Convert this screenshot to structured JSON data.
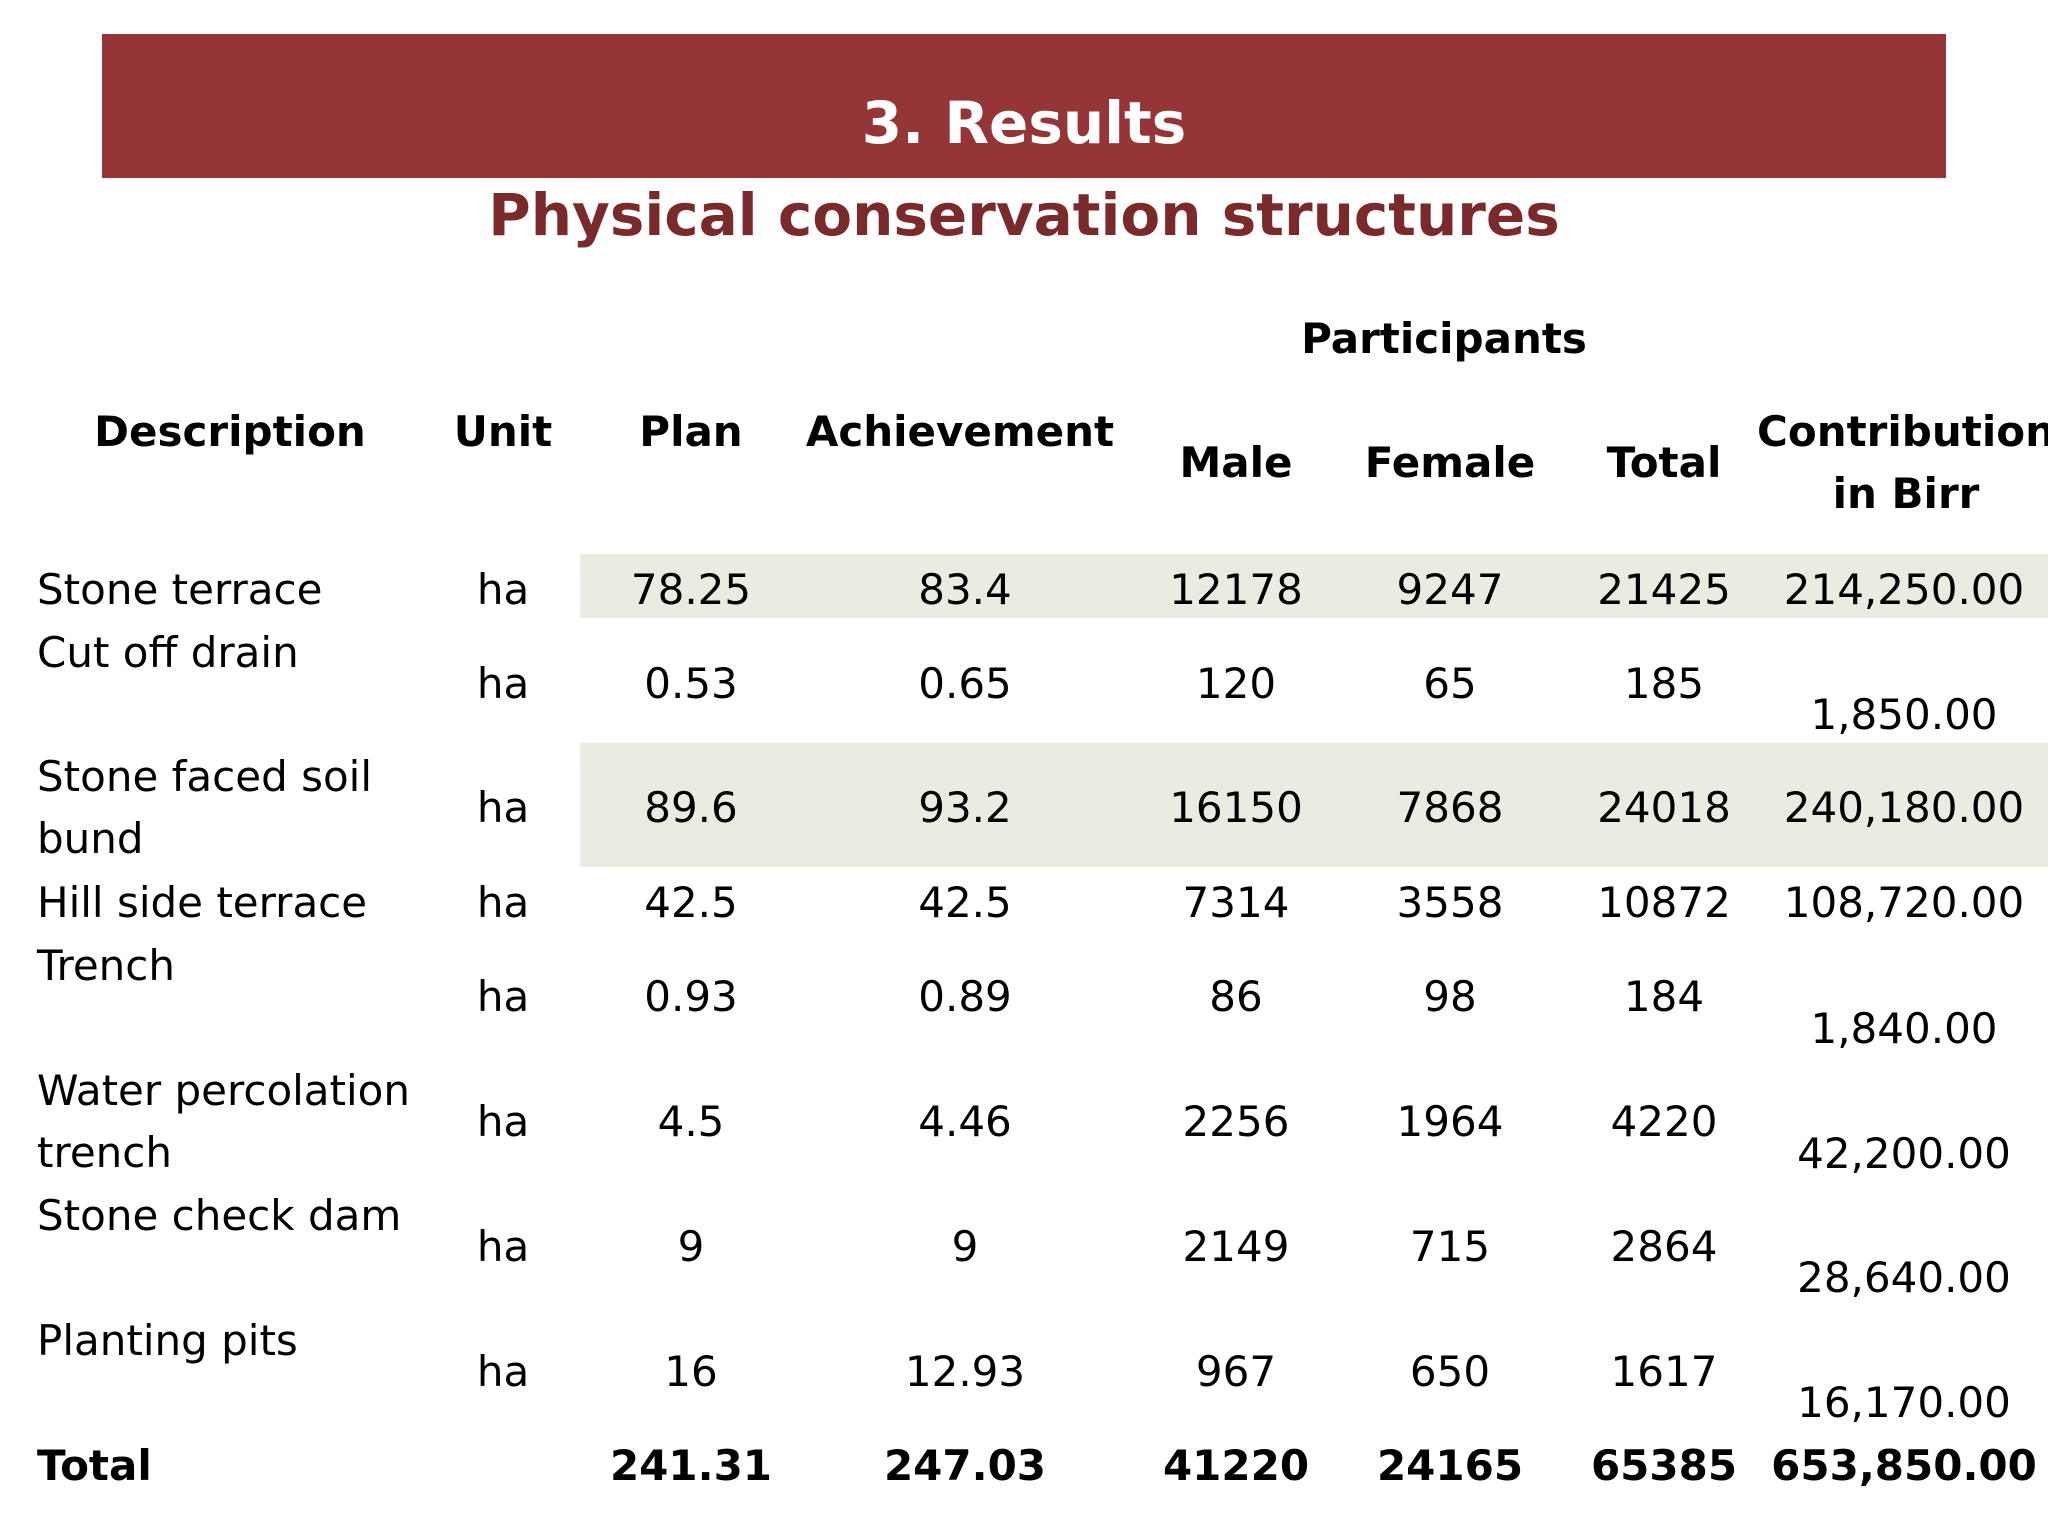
{
  "slide": {
    "title": "3. Results",
    "subtitle": "Physical conservation structures"
  },
  "table": {
    "headers": {
      "description": "Description",
      "unit": "Unit",
      "plan": "Plan",
      "achievement": "Achievement",
      "participants": "Participants",
      "male": "Male",
      "female": "Female",
      "total": "Total",
      "contribution_line1": "Contribution",
      "contribution_line2": "in Birr"
    },
    "rows": [
      {
        "description": [
          "Stone terrace"
        ],
        "unit": "ha",
        "plan": "78.25",
        "achievement": "83.4",
        "male": "12178",
        "female": "9247",
        "total": "21425",
        "contribution": "214,250.00"
      },
      {
        "description": [
          "Cut off drain"
        ],
        "unit": "ha",
        "plan": "0.53",
        "achievement": "0.65",
        "male": "120",
        "female": "65",
        "total": "185",
        "contribution": "1,850.00"
      },
      {
        "description": [
          "Stone faced soil",
          "bund"
        ],
        "unit": "ha",
        "plan": "89.6",
        "achievement": "93.2",
        "male": "16150",
        "female": "7868",
        "total": "24018",
        "contribution": "240,180.00"
      },
      {
        "description": [
          "Hill side terrace"
        ],
        "unit": "ha",
        "plan": "42.5",
        "achievement": "42.5",
        "male": "7314",
        "female": "3558",
        "total": "10872",
        "contribution": "108,720.00"
      },
      {
        "description": [
          "Trench"
        ],
        "unit": "ha",
        "plan": "0.93",
        "achievement": "0.89",
        "male": "86",
        "female": "98",
        "total": "184",
        "contribution": "1,840.00"
      },
      {
        "description": [
          "Water percolation",
          "trench"
        ],
        "unit": "ha",
        "plan": "4.5",
        "achievement": "4.46",
        "male": "2256",
        "female": "1964",
        "total": "4220",
        "contribution": "42,200.00"
      },
      {
        "description": [
          "Stone check dam"
        ],
        "unit": "ha",
        "plan": "9",
        "achievement": "9",
        "male": "2149",
        "female": "715",
        "total": "2864",
        "contribution": "28,640.00"
      },
      {
        "description": [
          "Planting pits"
        ],
        "unit": "ha",
        "plan": "16",
        "achievement": "12.93",
        "male": "967",
        "female": "650",
        "total": "1617",
        "contribution": "16,170.00"
      }
    ],
    "total_row": {
      "description": "Total",
      "unit": "",
      "plan": "241.31",
      "achievement": "247.03",
      "male": "41220",
      "female": "24165",
      "total": "65385",
      "contribution": "653,850.00"
    }
  },
  "colors": {
    "banner": "#963538",
    "subtitle": "#7b2a2c",
    "row_band": "#ecebe2"
  }
}
